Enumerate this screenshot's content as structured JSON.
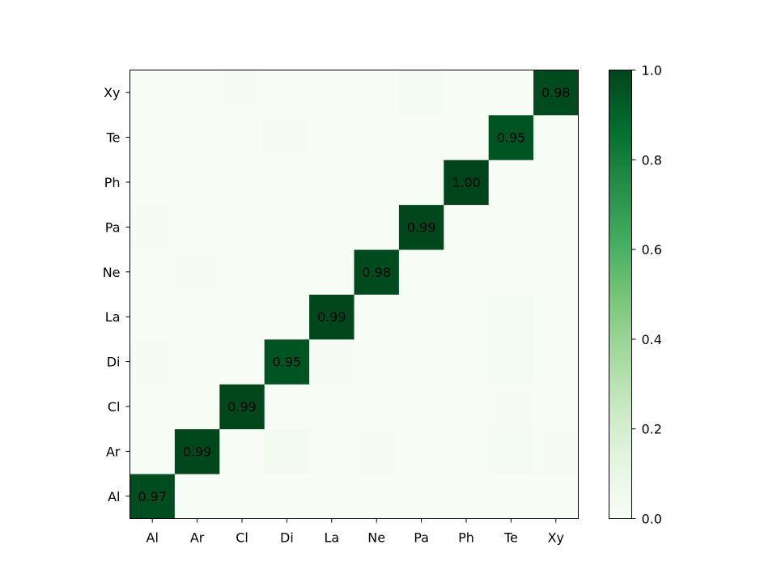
{
  "chart_data": {
    "type": "heatmap",
    "title": "",
    "xlabel": "",
    "ylabel": "",
    "x_categories": [
      "Al",
      "Ar",
      "Cl",
      "Di",
      "La",
      "Ne",
      "Pa",
      "Ph",
      "Te",
      "Xy"
    ],
    "y_categories": [
      "Al",
      "Ar",
      "Cl",
      "Di",
      "La",
      "Ne",
      "Pa",
      "Ph",
      "Te",
      "Xy"
    ],
    "y_order": "bottom-to-top",
    "matrix": [
      [
        0.97,
        0.0,
        0.0,
        0.0,
        0.0,
        0.0,
        0.0,
        0.0,
        0.0,
        0.0
      ],
      [
        0.0,
        0.99,
        0.0,
        0.03,
        0.0,
        0.01,
        0.0,
        0.0,
        0.02,
        0.01
      ],
      [
        0.0,
        0.0,
        0.99,
        0.0,
        0.0,
        0.0,
        0.0,
        0.0,
        0.01,
        0.0
      ],
      [
        0.01,
        0.0,
        0.0,
        0.95,
        0.01,
        0.0,
        0.0,
        0.0,
        0.02,
        0.0
      ],
      [
        0.0,
        0.0,
        0.0,
        0.0,
        0.99,
        0.0,
        0.0,
        0.0,
        0.02,
        0.0
      ],
      [
        0.0,
        0.01,
        0.0,
        0.0,
        0.0,
        0.98,
        0.0,
        0.0,
        0.0,
        0.0
      ],
      [
        0.01,
        0.0,
        0.0,
        0.0,
        0.0,
        0.0,
        0.99,
        0.0,
        0.0,
        0.0
      ],
      [
        0.0,
        0.0,
        0.0,
        0.0,
        0.0,
        0.0,
        0.0,
        1.0,
        0.0,
        0.0
      ],
      [
        0.0,
        0.0,
        0.0,
        0.01,
        0.0,
        0.0,
        0.0,
        0.0,
        0.95,
        0.0
      ],
      [
        0.0,
        0.0,
        0.01,
        0.0,
        0.0,
        0.0,
        0.02,
        0.0,
        0.0,
        0.98
      ]
    ],
    "annotations": [
      {
        "row": "Al",
        "col": "Al",
        "text": "0.97"
      },
      {
        "row": "Ar",
        "col": "Ar",
        "text": "0.99"
      },
      {
        "row": "Cl",
        "col": "Cl",
        "text": "0.99"
      },
      {
        "row": "Di",
        "col": "Di",
        "text": "0.95"
      },
      {
        "row": "La",
        "col": "La",
        "text": "0.99"
      },
      {
        "row": "Ne",
        "col": "Ne",
        "text": "0.98"
      },
      {
        "row": "Pa",
        "col": "Pa",
        "text": "0.99"
      },
      {
        "row": "Ph",
        "col": "Ph",
        "text": "1.00"
      },
      {
        "row": "Te",
        "col": "Te",
        "text": "0.95"
      },
      {
        "row": "Xy",
        "col": "Xy",
        "text": "0.98"
      }
    ],
    "colormap": "Greens",
    "colorbar": {
      "range": [
        0.0,
        1.0
      ],
      "ticks": [
        "0.0",
        "0.2",
        "0.4",
        "0.6",
        "0.8",
        "1.0"
      ],
      "location": "right"
    },
    "grid": false
  }
}
